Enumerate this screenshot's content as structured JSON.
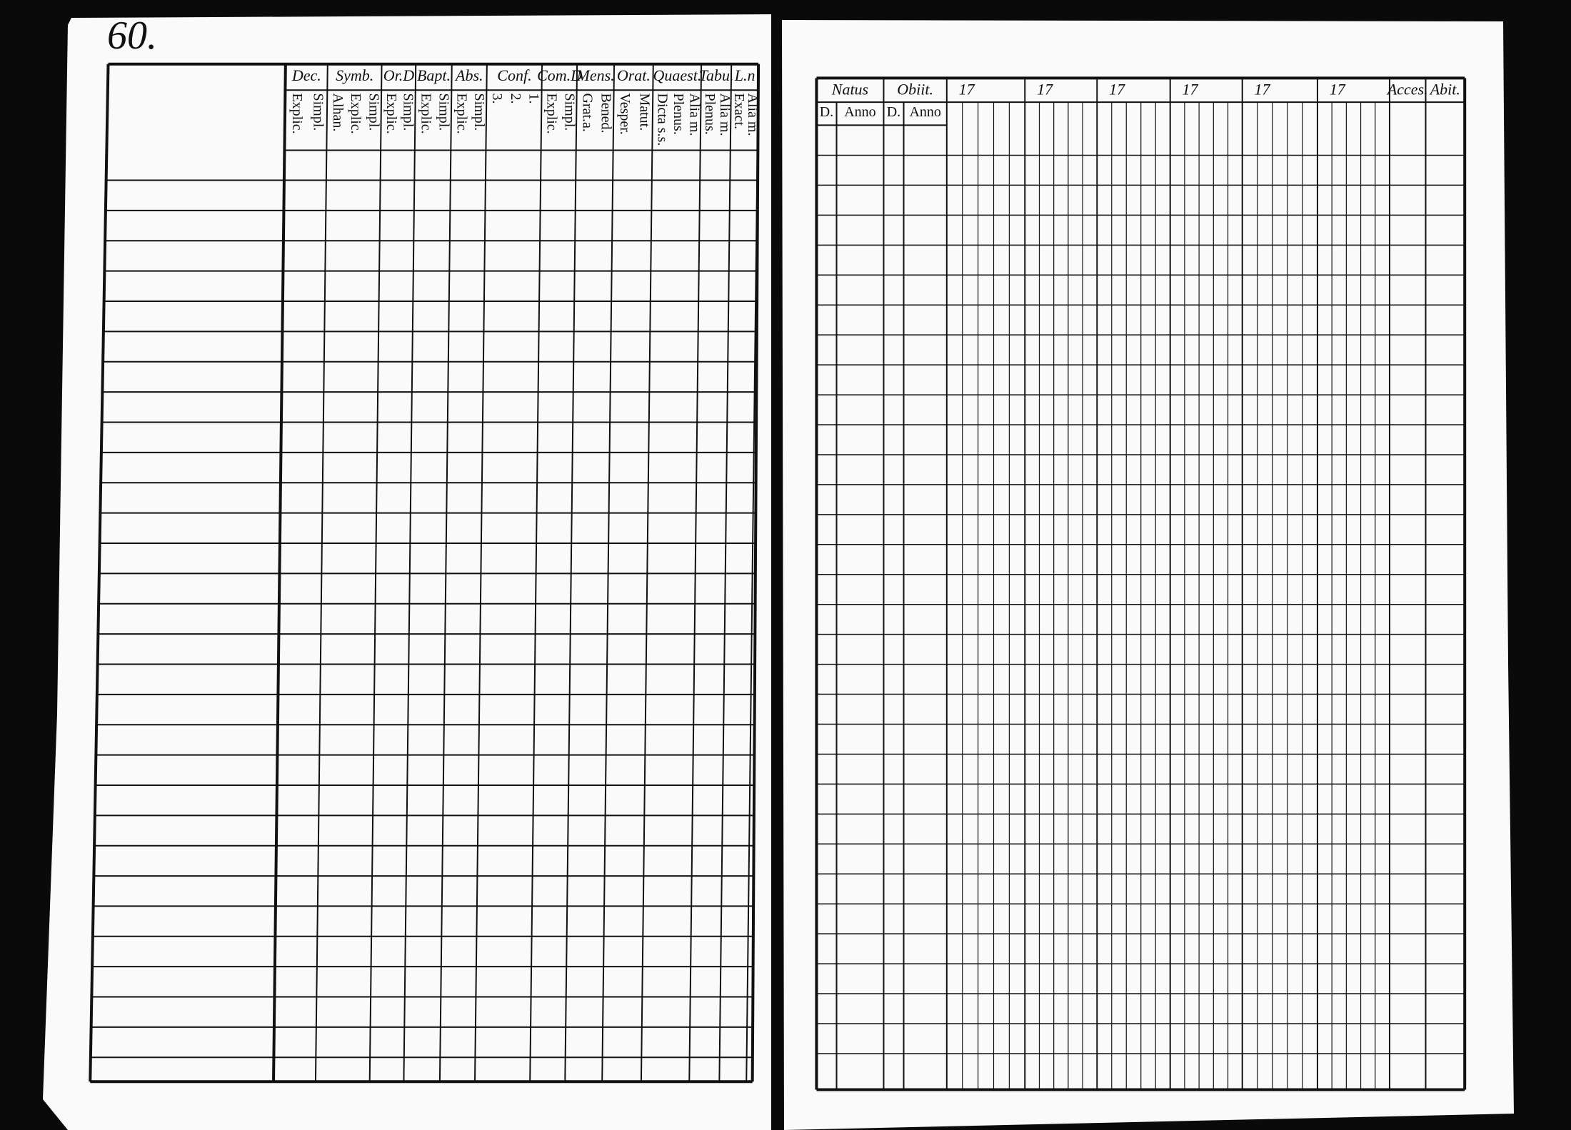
{
  "left_page": {
    "page_number": "60.",
    "columns": [
      {
        "title": "Dec.",
        "subs": [
          "Explic.",
          "Simpl."
        ]
      },
      {
        "title": "Symb.",
        "subs": [
          "Alhan.",
          "Explic.",
          "Simpl."
        ]
      },
      {
        "title": "Or.D",
        "subs": [
          "Explic.",
          "Simpl."
        ]
      },
      {
        "title": "Bapt.",
        "subs": [
          "Explic.",
          "Simpl."
        ]
      },
      {
        "title": "Abs.",
        "subs": [
          "Explic.",
          "Simpl."
        ]
      },
      {
        "title": "Conf.",
        "subs": [
          "3.",
          "2.",
          "1."
        ]
      },
      {
        "title": "Com.D",
        "subs": [
          "Explic.",
          "Simpl."
        ]
      },
      {
        "title": "Mens.",
        "subs": [
          "Grat.a.",
          "Bened."
        ]
      },
      {
        "title": "Orat.",
        "subs": [
          "Vesper.",
          "Matut."
        ]
      },
      {
        "title": "Quaest.",
        "subs": [
          "Dicta s.s.",
          "Plenus.",
          "Alia m."
        ]
      },
      {
        "title": "Tabu.",
        "subs": [
          "Plenus.",
          "Alia m."
        ]
      },
      {
        "title": "L.n",
        "subs": [
          "Exact.",
          "Alia m."
        ]
      }
    ]
  },
  "right_page": {
    "columns": [
      {
        "title": "Natus",
        "subs": [
          "D.",
          "Anno"
        ]
      },
      {
        "title": "Obiit.",
        "subs": [
          "D.",
          "Anno"
        ]
      },
      {
        "title": "17",
        "subs": []
      },
      {
        "title": "17",
        "subs": []
      },
      {
        "title": "17",
        "subs": []
      },
      {
        "title": "17",
        "subs": []
      },
      {
        "title": "17",
        "subs": []
      },
      {
        "title": "17",
        "subs": []
      },
      {
        "title": "Acces.",
        "subs": []
      },
      {
        "title": "Abit.",
        "subs": []
      }
    ]
  }
}
